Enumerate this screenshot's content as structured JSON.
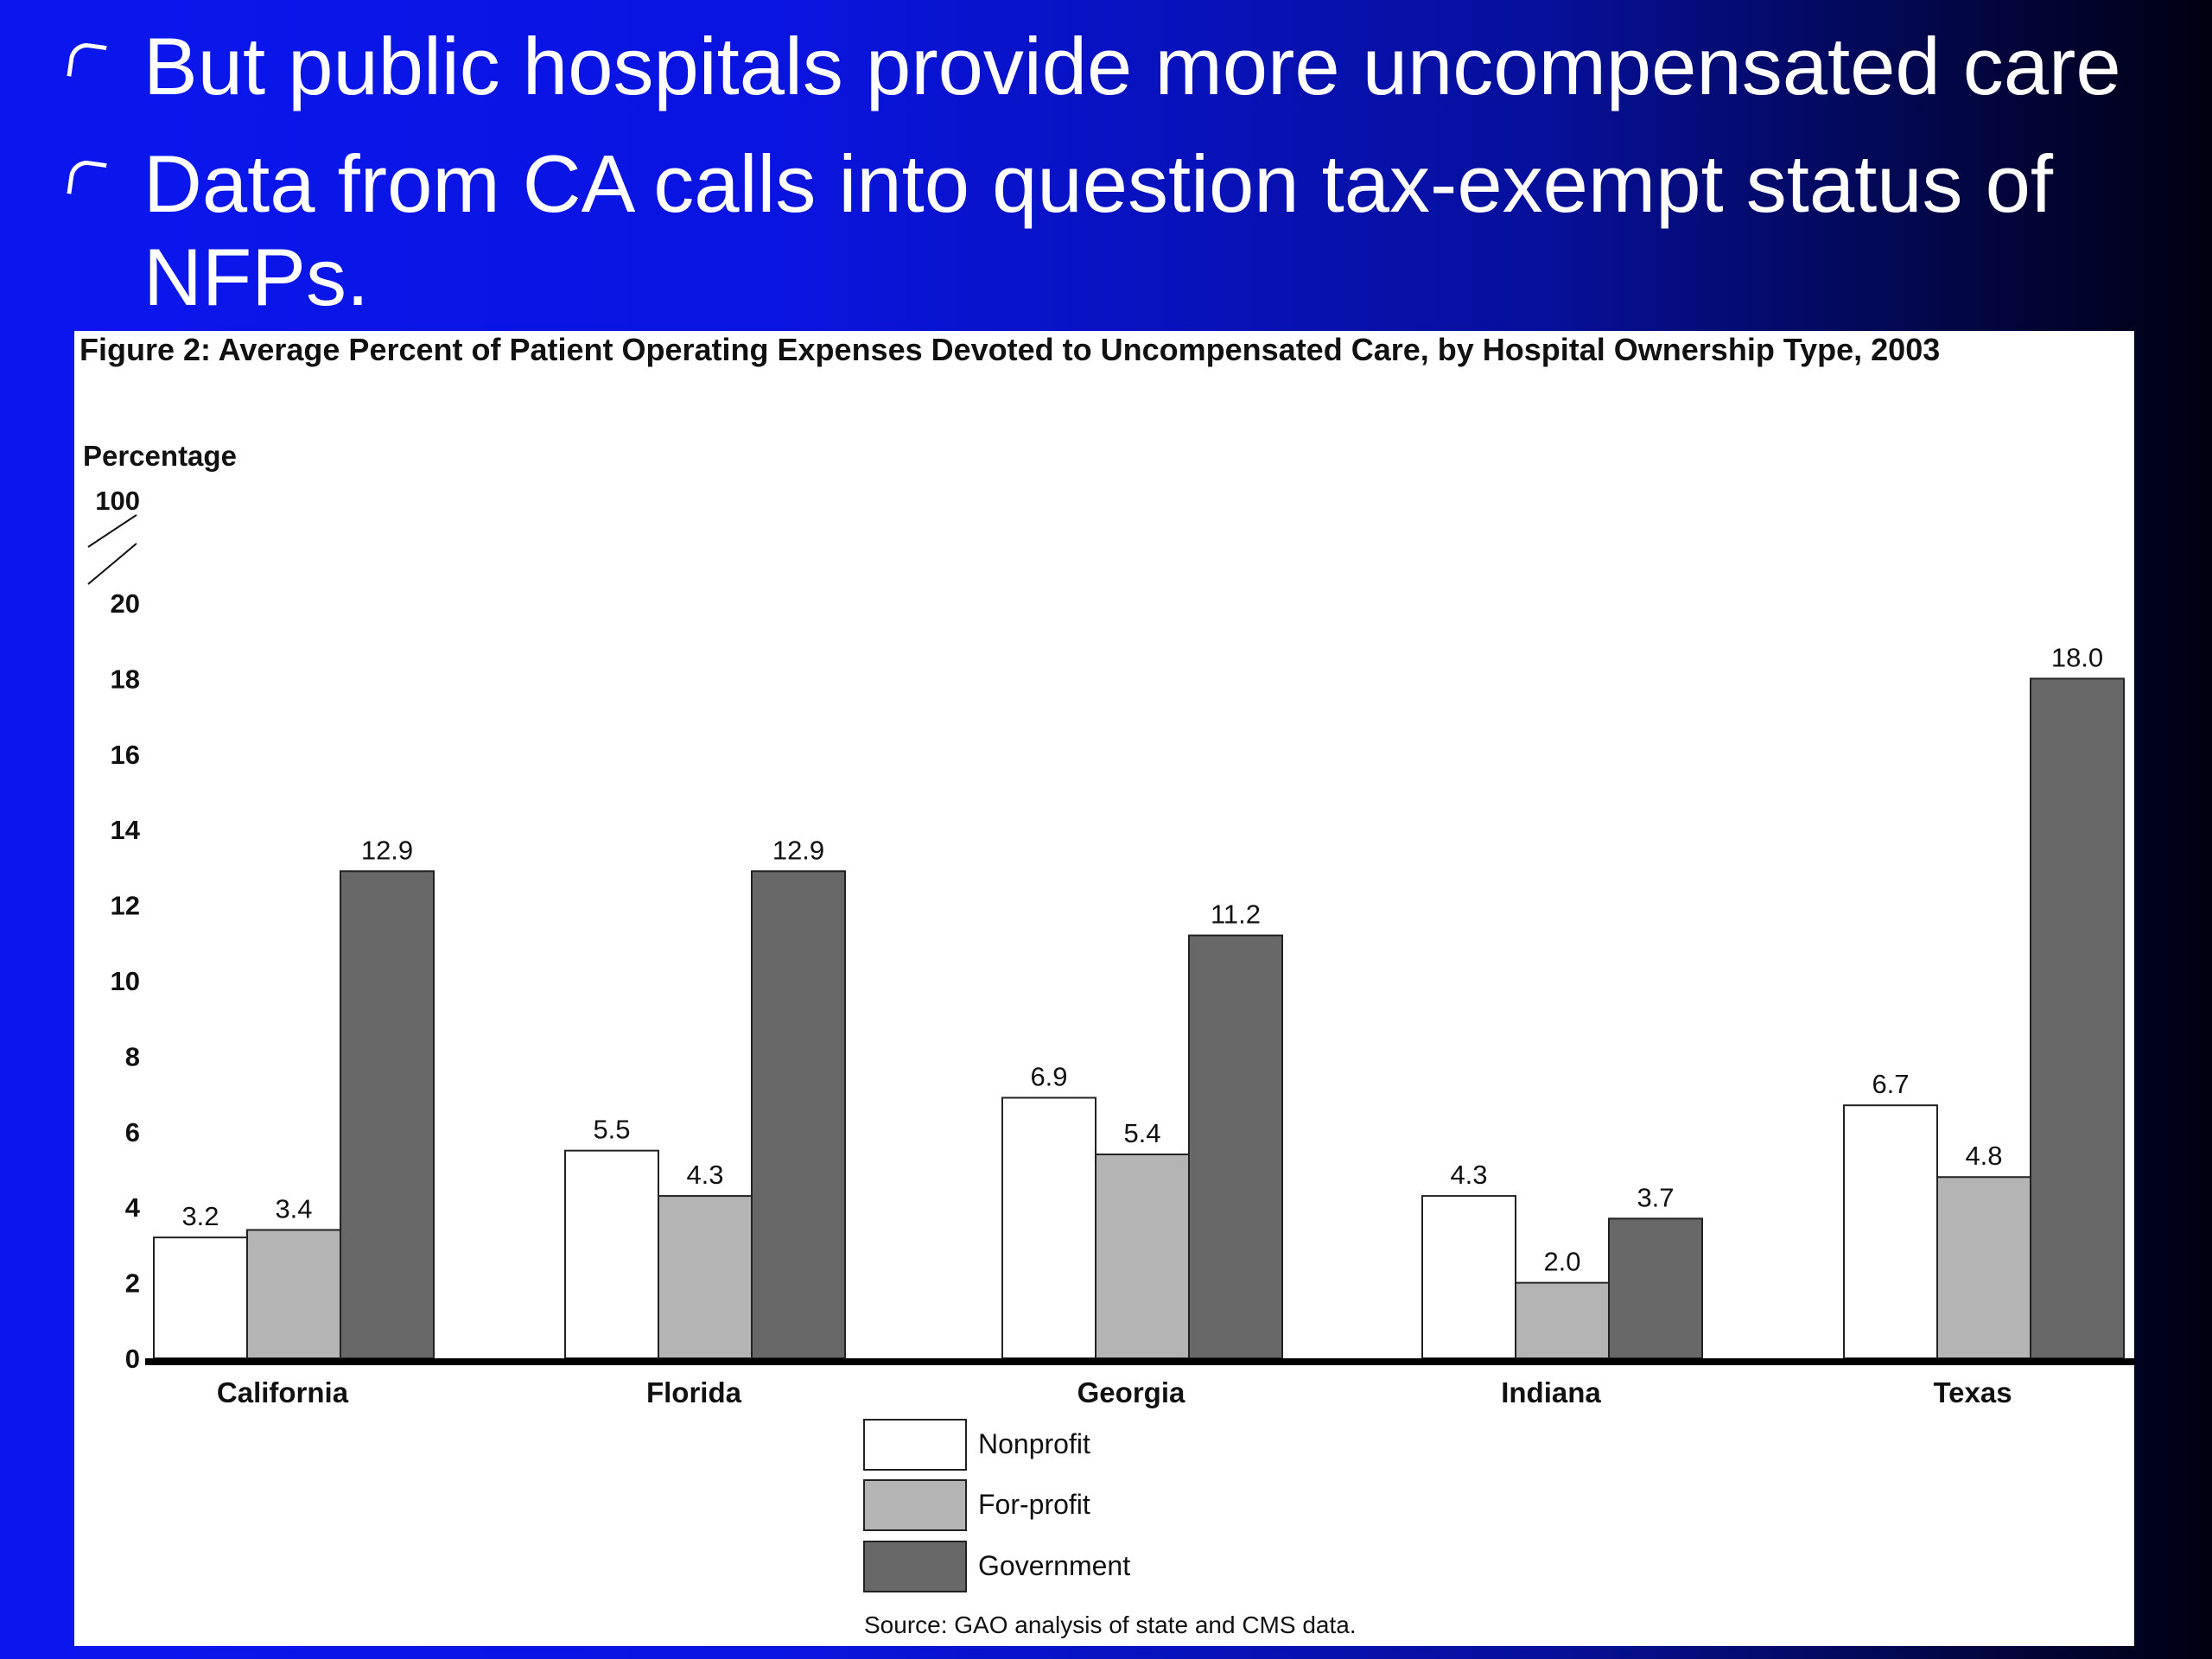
{
  "bullets": [
    {
      "text": "But public hospitals provide more uncompensated care"
    },
    {
      "line1": "Data from CA calls into question tax-exempt status of",
      "line2": "NFPs."
    }
  ],
  "figure": {
    "title": "Figure 2: Average Percent of Patient Operating Expenses Devoted to Uncompensated Care, by Hospital Ownership Type, 2003",
    "source": "Source: GAO analysis of state and CMS data."
  },
  "chart_data": {
    "type": "bar",
    "title": "Figure 2: Average Percent of Patient Operating Expenses Devoted to Uncompensated Care, by Hospital Ownership Type, 2003",
    "ylabel": "Percentage",
    "ylim": [
      0,
      20
    ],
    "axis_break": true,
    "y_ticks": [
      "0",
      "2",
      "4",
      "6",
      "8",
      "10",
      "12",
      "14",
      "16",
      "18",
      "20",
      "100"
    ],
    "categories": [
      "California",
      "Florida",
      "Georgia",
      "Indiana",
      "Texas"
    ],
    "series": [
      {
        "name": "Nonprofit",
        "values": [
          3.2,
          5.5,
          6.9,
          4.3,
          6.7
        ],
        "labels": [
          "3.2",
          "5.5",
          "6.9",
          "4.3",
          "6.7"
        ],
        "color": "#ffffff"
      },
      {
        "name": "For-profit",
        "values": [
          3.4,
          4.3,
          5.4,
          2.0,
          4.8
        ],
        "labels": [
          "3.4",
          "4.3",
          "5.4",
          "2.0",
          "4.8"
        ],
        "color": "#b4b4b4"
      },
      {
        "name": "Government",
        "values": [
          12.9,
          12.9,
          11.2,
          3.7,
          18.0
        ],
        "labels": [
          "12.9",
          "12.9",
          "11.2",
          "3.7",
          "18.0"
        ],
        "color": "#686868"
      }
    ],
    "legend_position": "bottom-center",
    "grid": false
  }
}
